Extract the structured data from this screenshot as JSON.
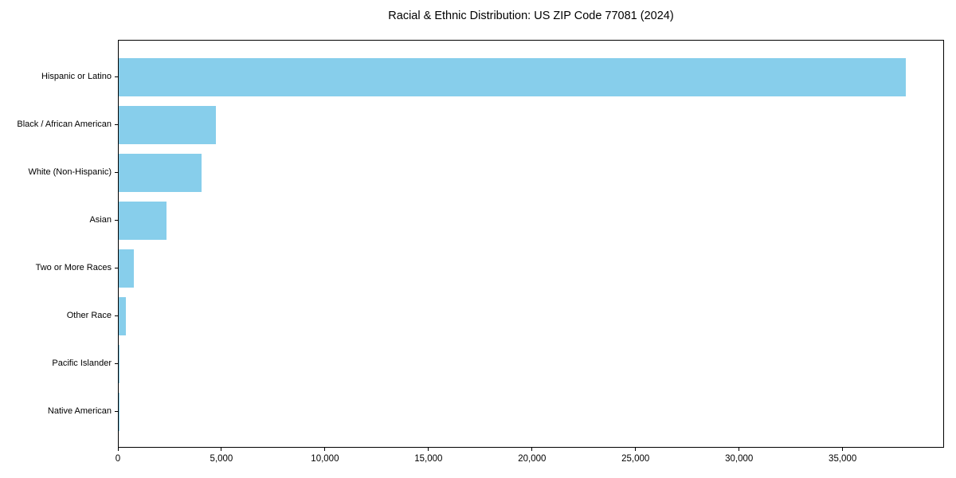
{
  "chart_data": {
    "type": "bar",
    "orientation": "horizontal",
    "title": "Racial & Ethnic Distribution: US ZIP Code 77081 (2024)",
    "categories": [
      "Hispanic or Latino",
      "Black / African American",
      "White (Non-Hispanic)",
      "Asian",
      "Two or More Races",
      "Other Race",
      "Pacific Islander",
      "Native American"
    ],
    "values": [
      38000,
      4700,
      4000,
      2300,
      750,
      330,
      40,
      10
    ],
    "xlabel": "",
    "ylabel": "",
    "xlim": [
      0,
      39900
    ],
    "xticks": [
      0,
      5000,
      10000,
      15000,
      20000,
      25000,
      30000,
      35000
    ],
    "xtick_labels": [
      "0",
      "5,000",
      "10,000",
      "15,000",
      "20,000",
      "25,000",
      "30,000",
      "35,000"
    ],
    "bar_color": "#87CEEB",
    "spine_color": "#000000",
    "text_color": "#000000",
    "background_color": "#ffffff",
    "grid": false,
    "legend": null
  }
}
